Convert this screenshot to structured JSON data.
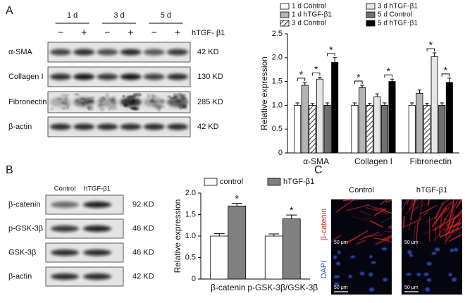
{
  "panels": {
    "a": "A",
    "b": "B",
    "c": "C"
  },
  "blot_a": {
    "days": [
      "1 d",
      "3 d",
      "5 d"
    ],
    "signs": [
      "−",
      "+",
      "−",
      "+",
      "−",
      "+"
    ],
    "treatment": "hTGF- β1",
    "rows": [
      {
        "name": "α-SMA",
        "size": "42 KD"
      },
      {
        "name": "Collagen I",
        "size": "130 KD"
      },
      {
        "name": "Fibronectin",
        "size": "285 KD"
      },
      {
        "name": "β-actin",
        "size": "42 KD"
      }
    ]
  },
  "blot_b": {
    "columns": [
      "Control",
      "hTGF-β1"
    ],
    "rows": [
      {
        "name": "β-catenin",
        "size": "92 KD"
      },
      {
        "name": "p-GSK-3β",
        "size": "46 KD"
      },
      {
        "name": "GSK-3β",
        "size": "46 KD"
      },
      {
        "name": "β-actin",
        "size": "42 KD"
      }
    ]
  },
  "images": {
    "columns": [
      "Control",
      "hTGF-β1"
    ],
    "rows": [
      {
        "name": "β-catenin",
        "color": "#e02828"
      },
      {
        "name": "DAPI",
        "color": "#3a5ad8"
      }
    ],
    "scale_bar": "50 μm"
  },
  "chart_data": [
    {
      "type": "bar",
      "y_label": "Relative expression",
      "categories": [
        "α-SMA",
        "Collagen I",
        "Fibronectin"
      ],
      "series": [
        {
          "name": "1 d Control",
          "color": "#ffffff",
          "values": [
            1.0,
            1.0,
            1.0
          ],
          "errors": [
            0.05,
            0.05,
            0.05
          ]
        },
        {
          "name": "1 d hTGF-β1",
          "color": "#b4b4b4",
          "values": [
            1.42,
            1.37,
            1.25
          ],
          "errors": [
            0.06,
            0.05,
            0.07
          ]
        },
        {
          "name": "3 d Control",
          "color": "#ffffff",
          "pattern": "hatch",
          "values": [
            1.0,
            1.0,
            1.0
          ],
          "errors": [
            0.04,
            0.04,
            0.04
          ]
        },
        {
          "name": "3 d hTGF-β1",
          "color": "#e6e6e6",
          "values": [
            1.55,
            1.18,
            2.02
          ],
          "errors": [
            0.04,
            0.06,
            0.08
          ]
        },
        {
          "name": "5 d Control",
          "color": "#707070",
          "values": [
            1.0,
            1.0,
            1.0
          ],
          "errors": [
            0.05,
            0.05,
            0.05
          ]
        },
        {
          "name": "5 d hTGF-β1",
          "color": "#000000",
          "values": [
            1.9,
            1.5,
            1.48
          ],
          "errors": [
            0.1,
            0.05,
            0.09
          ]
        }
      ],
      "ylim": [
        0,
        2.5
      ],
      "yticks": [
        0,
        0.5,
        {
          "value": 1,
          "label": "1.0"
        },
        1.5,
        {
          "value": 2,
          "label": "2.0"
        },
        2.5
      ],
      "legend": "top",
      "annotations": [
        {
          "text": "*",
          "category": 0,
          "from": 0,
          "to": 1
        },
        {
          "text": "*",
          "category": 0,
          "from": 2,
          "to": 3
        },
        {
          "text": "*",
          "category": 0,
          "from": 4,
          "to": 5
        },
        {
          "text": "*",
          "category": 1,
          "from": 0,
          "to": 1
        },
        {
          "text": "*",
          "category": 1,
          "from": 4,
          "to": 5
        },
        {
          "text": "*",
          "category": 2,
          "from": 2,
          "to": 3
        },
        {
          "text": "*",
          "category": 2,
          "from": 4,
          "to": 5
        }
      ]
    },
    {
      "type": "bar",
      "y_label": "Relative expression",
      "categories": [
        "β-catenin",
        "p-GSK-3β/GSK-3β"
      ],
      "series": [
        {
          "name": "control",
          "color": "#ffffff",
          "values": [
            1.0,
            1.0
          ],
          "errors": [
            0.06,
            0.05
          ]
        },
        {
          "name": "hTGF-β1",
          "color": "#808080",
          "values": [
            1.7,
            1.4
          ],
          "errors": [
            0.06,
            0.09
          ]
        }
      ],
      "ylim": [
        0,
        2
      ],
      "yticks": [
        0,
        0.5,
        {
          "value": 1,
          "label": "1.0"
        },
        1.5,
        {
          "value": 2,
          "label": "2.0"
        }
      ],
      "legend": "top",
      "annotations": [
        {
          "text": "*",
          "category": 0,
          "series": 1
        },
        {
          "text": "*",
          "category": 1,
          "series": 1
        }
      ]
    }
  ]
}
